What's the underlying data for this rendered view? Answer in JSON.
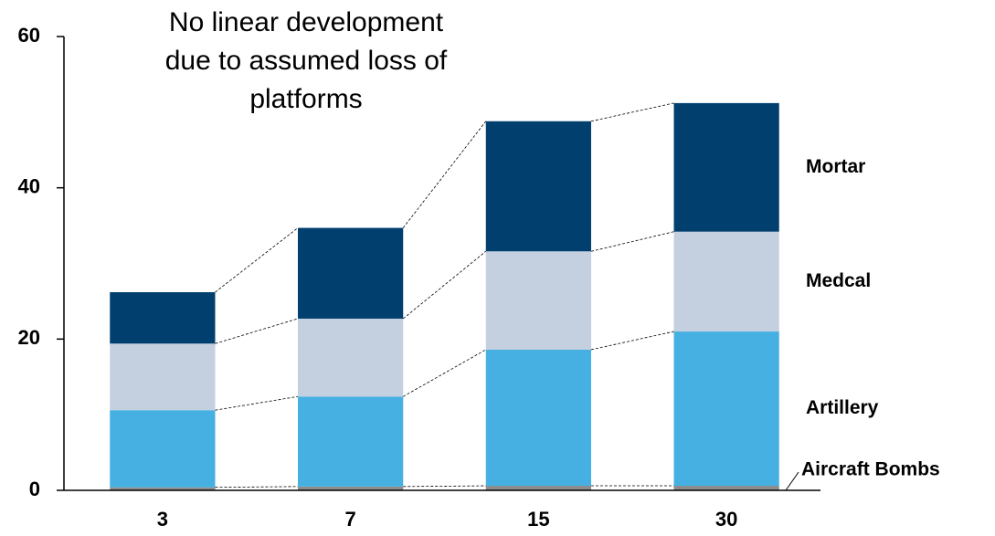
{
  "chart_data": {
    "type": "stacked_bar",
    "annotation": "No linear development due to assumed loss of platforms",
    "categories": [
      "3",
      "7",
      "15",
      "30"
    ],
    "series": [
      {
        "name": "Aircraft Bombs",
        "color": "#8c8c8c",
        "values": [
          0.4,
          0.5,
          0.6,
          0.6
        ]
      },
      {
        "name": "Artillery",
        "color": "#45b0e1",
        "values": [
          10.2,
          11.9,
          18.0,
          20.4
        ]
      },
      {
        "name": "Medcal",
        "color": "#c4cfe0",
        "values": [
          8.8,
          10.3,
          13.0,
          13.2
        ]
      },
      {
        "name": "Mortar",
        "color": "#003f6e",
        "values": [
          6.8,
          12.0,
          17.2,
          17.0
        ]
      }
    ],
    "ylim": [
      0,
      60
    ],
    "yticks": [
      0,
      20,
      40,
      60
    ]
  }
}
